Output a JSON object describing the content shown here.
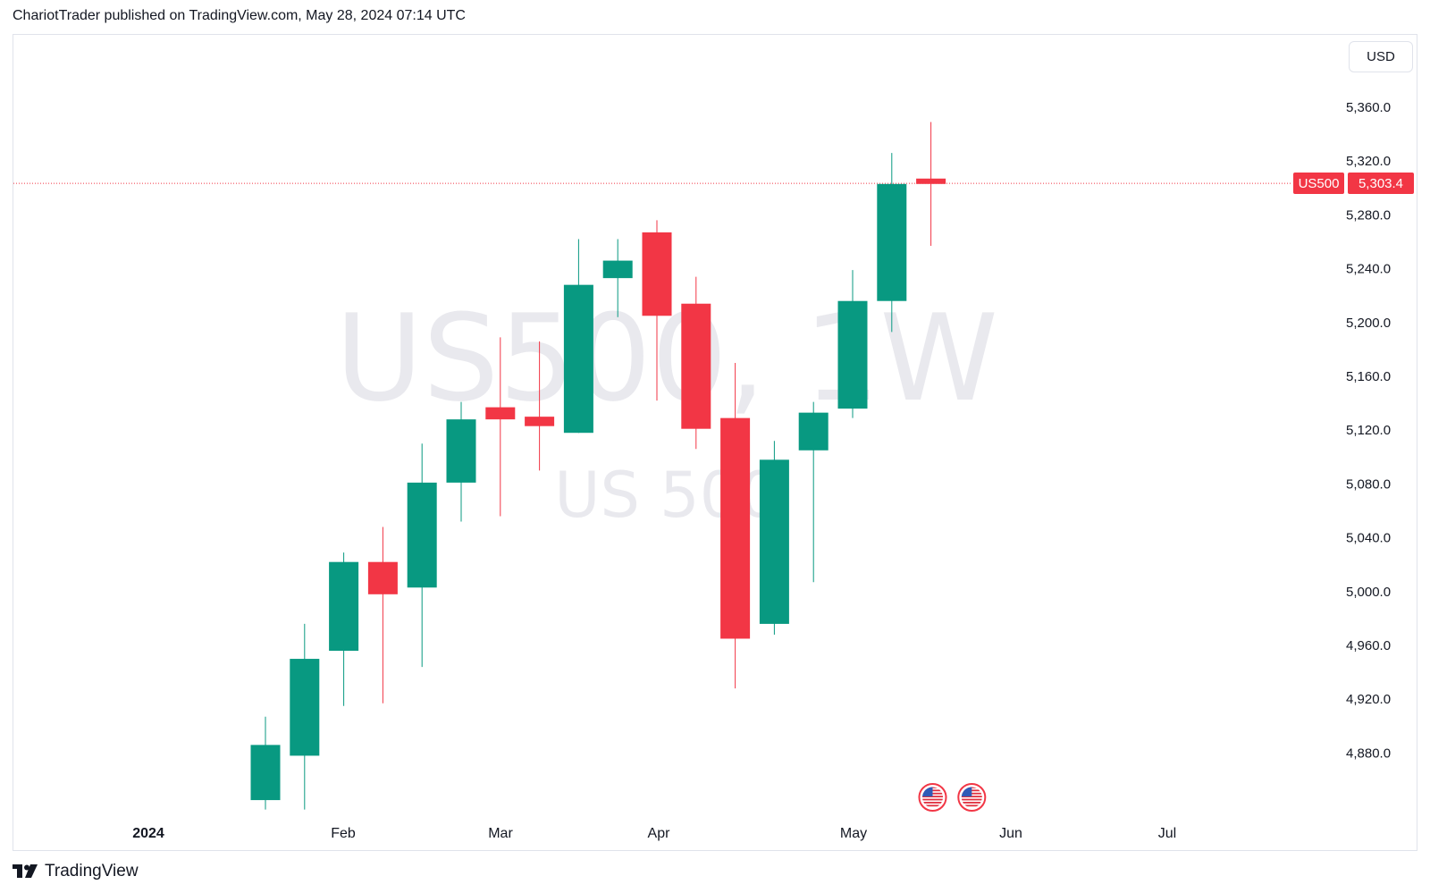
{
  "header": {
    "publisher_line": "ChariotTrader published on TradingView.com, May 28, 2024 07:14 UTC"
  },
  "currency_button": "USD",
  "footer": {
    "logo_text": "TradingView",
    "logo_icon": "tradingview-logo-icon"
  },
  "colors": {
    "up": "#089981",
    "down": "#f23645",
    "grid_text": "#131722",
    "watermark": "#e9e9ee",
    "price_line": "#f23645"
  },
  "last_price_label": {
    "symbol": "US500",
    "price": "5,303.4"
  },
  "event_icons": [
    "us-flag-icon",
    "us-flag-icon"
  ],
  "chart_data": {
    "type": "candlestick",
    "symbol": "US500",
    "timeframe": "1W",
    "watermark_main": "US500, 1W",
    "watermark_sub": "US 500",
    "ylim": [
      4840,
      5400
    ],
    "y_ticks": [
      "5,360.0",
      "5,320.0",
      "5,280.0",
      "5,240.0",
      "5,200.0",
      "5,160.0",
      "5,120.0",
      "5,080.0",
      "5,040.0",
      "5,000.0",
      "4,960.0",
      "4,920.0",
      "4,880.0"
    ],
    "x_ticks": [
      "2024",
      "Feb",
      "Mar",
      "Apr",
      "May",
      "Jun",
      "Jul"
    ],
    "last_price": 5303.4,
    "candles": [
      {
        "week": "2024-01-15",
        "open": 4845,
        "high": 4907,
        "low": 4838,
        "close": 4886
      },
      {
        "week": "2024-01-22",
        "open": 4878,
        "high": 4976,
        "low": 4838,
        "close": 4950
      },
      {
        "week": "2024-01-29",
        "open": 4956,
        "high": 5029,
        "low": 4915,
        "close": 5022
      },
      {
        "week": "2024-02-05",
        "open": 5022,
        "high": 5048,
        "low": 4917,
        "close": 4998
      },
      {
        "week": "2024-02-12",
        "open": 5003,
        "high": 5110,
        "low": 4944,
        "close": 5081
      },
      {
        "week": "2024-02-19",
        "open": 5081,
        "high": 5141,
        "low": 5052,
        "close": 5128
      },
      {
        "week": "2024-02-26",
        "open": 5137,
        "high": 5189,
        "low": 5056,
        "close": 5128
      },
      {
        "week": "2024-03-04",
        "open": 5130,
        "high": 5186,
        "low": 5090,
        "close": 5123
      },
      {
        "week": "2024-03-11",
        "open": 5118,
        "high": 5262,
        "low": 5118,
        "close": 5228
      },
      {
        "week": "2024-03-18",
        "open": 5233,
        "high": 5262,
        "low": 5204,
        "close": 5246
      },
      {
        "week": "2024-03-25",
        "open": 5267,
        "high": 5276,
        "low": 5142,
        "close": 5205
      },
      {
        "week": "2024-04-01",
        "open": 5214,
        "high": 5234,
        "low": 5106,
        "close": 5121
      },
      {
        "week": "2024-04-08",
        "open": 5129,
        "high": 5170,
        "low": 4928,
        "close": 4965
      },
      {
        "week": "2024-04-15",
        "open": 4976,
        "high": 5112,
        "low": 4968,
        "close": 5098
      },
      {
        "week": "2024-04-22",
        "open": 5105,
        "high": 5141,
        "low": 5007,
        "close": 5133
      },
      {
        "week": "2024-04-29",
        "open": 5136,
        "high": 5239,
        "low": 5129,
        "close": 5216
      },
      {
        "week": "2024-05-06",
        "open": 5216,
        "high": 5326,
        "low": 5193,
        "close": 5303
      },
      {
        "week": "2024-05-13",
        "open": 5307,
        "high": 5349,
        "low": 5257,
        "close": 5303
      }
    ]
  }
}
